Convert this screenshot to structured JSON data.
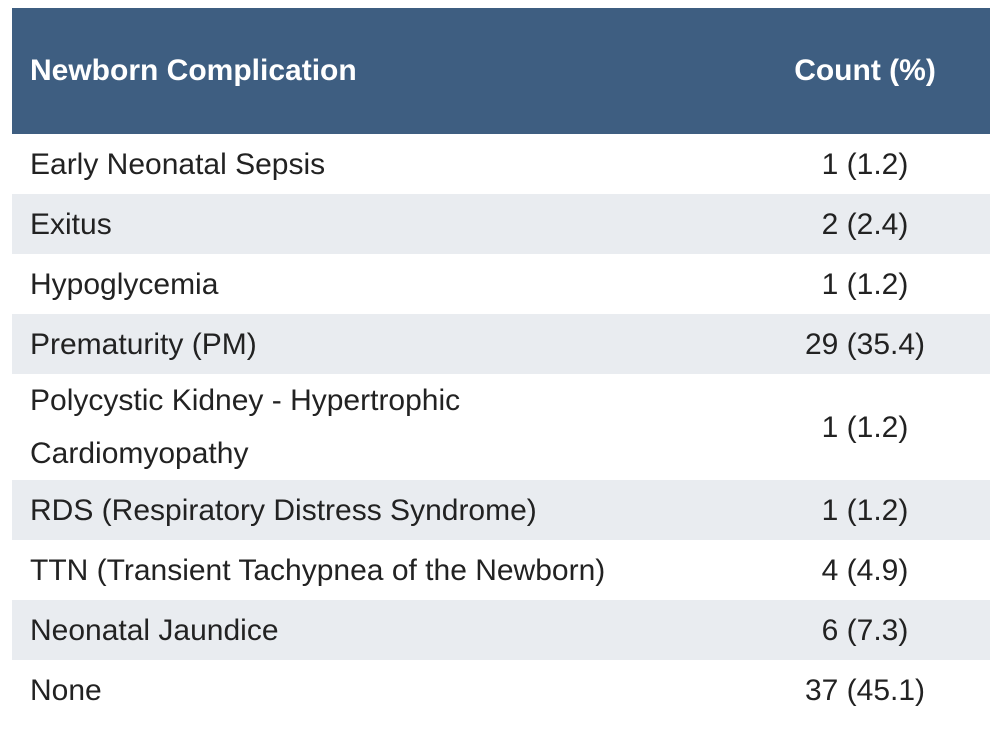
{
  "table": {
    "header": [
      "Newborn Complication",
      "Count (%)"
    ],
    "rows": [
      [
        [
          "Early Neonatal Sepsis"
        ],
        "1 (1.2)"
      ],
      [
        [
          "Exitus"
        ],
        "2 (2.4)"
      ],
      [
        [
          "Hypoglycemia"
        ],
        "1 (1.2)"
      ],
      [
        [
          "Prematurity (PM)"
        ],
        "29 (35.4)"
      ],
      [
        [
          "Polycystic Kidney - Hypertrophic",
          "Cardiomyopathy"
        ],
        "1 (1.2)"
      ],
      [
        [
          "RDS (Respiratory Distress Syndrome)"
        ],
        "1 (1.2)"
      ],
      [
        [
          "TTN (Transient Tachypnea of the Newborn)"
        ],
        "4 (4.9)"
      ],
      [
        [
          "Neonatal Jaundice"
        ],
        "6 (7.3)"
      ],
      [
        [
          "None"
        ],
        "37 (45.1)"
      ]
    ]
  }
}
